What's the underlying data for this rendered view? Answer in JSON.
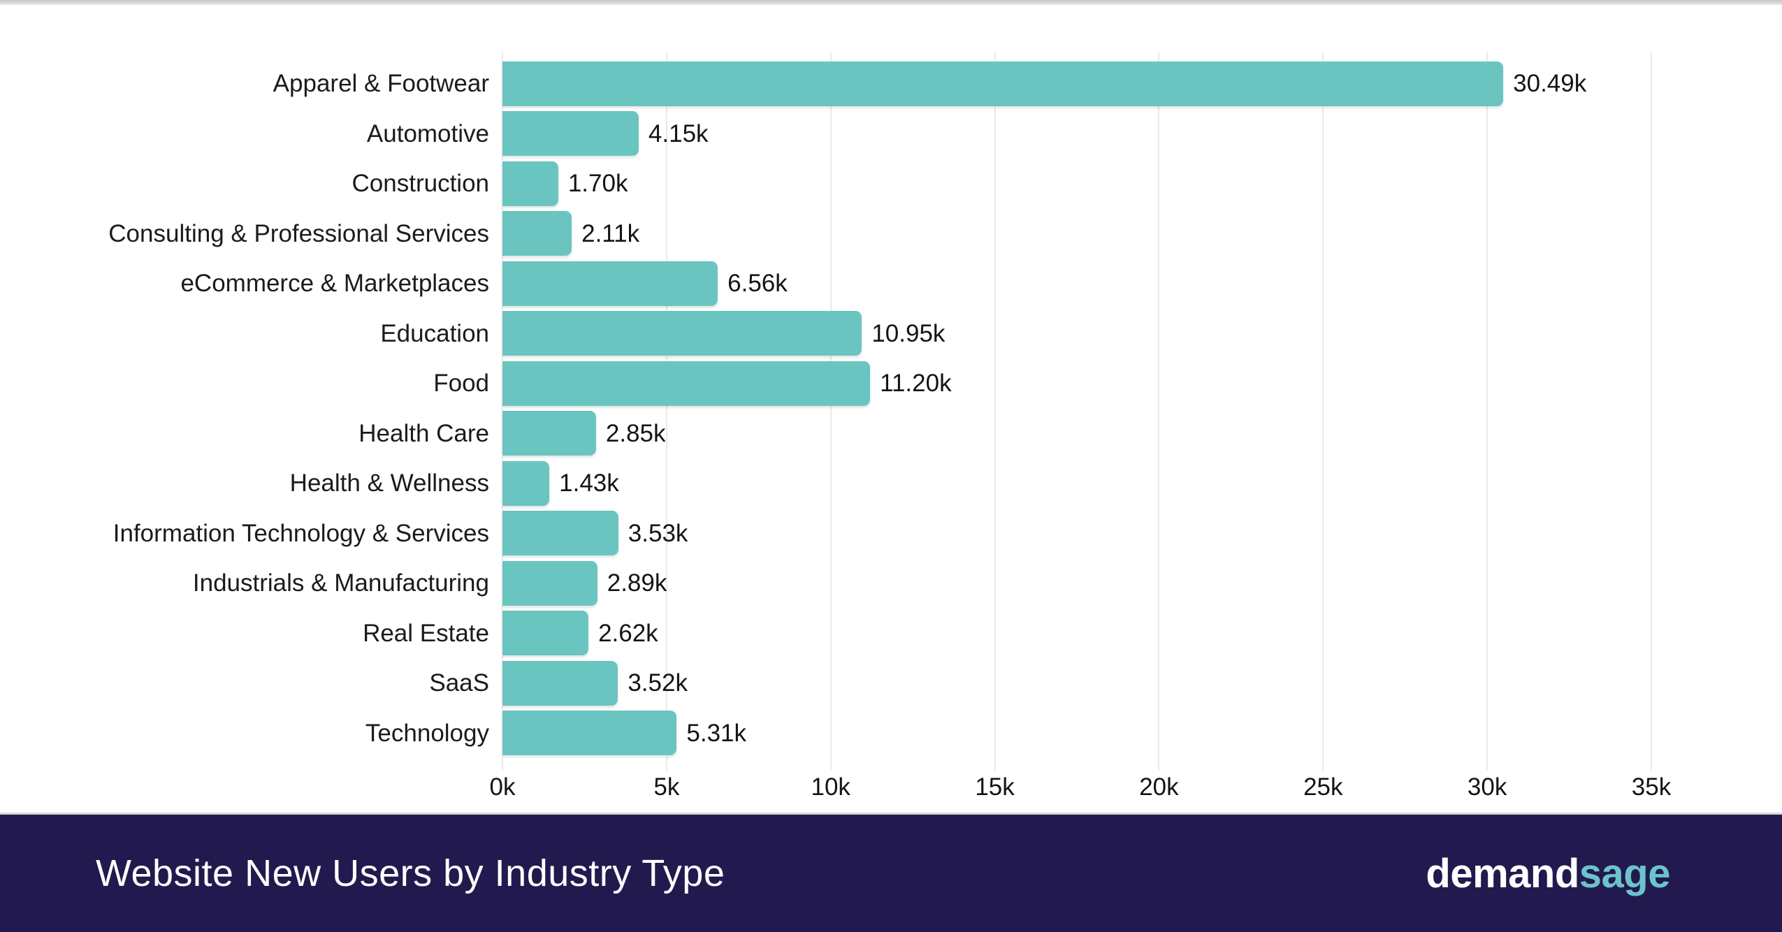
{
  "chart_data": {
    "type": "bar",
    "orientation": "horizontal",
    "title": "Website New Users by Industry Type",
    "categories": [
      "Apparel & Footwear",
      "Automotive",
      "Construction",
      "Consulting & Professional Services",
      "eCommerce & Marketplaces",
      "Education",
      "Food",
      "Health Care",
      "Health & Wellness",
      "Information Technology & Services",
      "Industrials & Manufacturing",
      "Real Estate",
      "SaaS",
      "Technology"
    ],
    "values": [
      30490,
      4150,
      1700,
      2110,
      6560,
      10950,
      11200,
      2850,
      1430,
      3530,
      2890,
      2620,
      3520,
      5310
    ],
    "value_labels": [
      "30.49k",
      "4.15k",
      "1.70k",
      "2.11k",
      "6.56k",
      "10.95k",
      "11.20k",
      "2.85k",
      "1.43k",
      "3.53k",
      "2.89k",
      "2.62k",
      "3.52k",
      "5.31k"
    ],
    "x_ticks": [
      "0k",
      "5k",
      "10k",
      "15k",
      "20k",
      "25k",
      "30k",
      "35k"
    ],
    "x_tick_values": [
      0,
      5000,
      10000,
      15000,
      20000,
      25000,
      30000,
      35000
    ],
    "xlim": [
      0,
      35000
    ],
    "xlabel": "",
    "ylabel": "",
    "grid": true,
    "legend": false,
    "bar_color": "#6AC5C0",
    "gridline_color": "#E9E9E9",
    "label_color": "#1B1B1B"
  },
  "footer": {
    "title": "Website New Users by Industry Type",
    "background": "#221A4E",
    "logo": {
      "part1": "demand",
      "part2": "sage",
      "part1_color": "#FFFFFF",
      "part2_color": "#6CC3CA"
    }
  }
}
